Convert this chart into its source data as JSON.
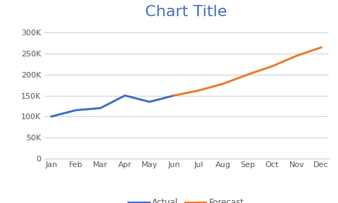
{
  "title": "Chart Title",
  "title_color": "#4472c4",
  "title_fontsize": 16,
  "months": [
    "Jan",
    "Feb",
    "Mar",
    "Apr",
    "May",
    "Jun",
    "Jul",
    "Aug",
    "Sep",
    "Oct",
    "Nov",
    "Dec"
  ],
  "actual_x": [
    0,
    1,
    2,
    3,
    4,
    5
  ],
  "actual_y": [
    100000,
    115000,
    120000,
    150000,
    135000,
    150000
  ],
  "forecast_x": [
    5,
    6,
    7,
    8,
    9,
    10,
    11
  ],
  "forecast_y": [
    150000,
    162000,
    178000,
    200000,
    220000,
    245000,
    265000
  ],
  "actual_color": "#4472c4",
  "forecast_color": "#ed7d31",
  "ylim": [
    0,
    320000
  ],
  "yticks": [
    0,
    50000,
    100000,
    150000,
    200000,
    250000,
    300000
  ],
  "ytick_labels": [
    "0",
    "50K",
    "100K",
    "150K",
    "200K",
    "250K",
    "300K"
  ],
  "background_color": "#ffffff",
  "plot_bg_color": "#ffffff",
  "grid_color": "#d0d0d0",
  "line_width": 2.2,
  "legend_labels": [
    "Actual",
    "Forecast"
  ],
  "tick_color": "#595959",
  "tick_fontsize": 8.0
}
